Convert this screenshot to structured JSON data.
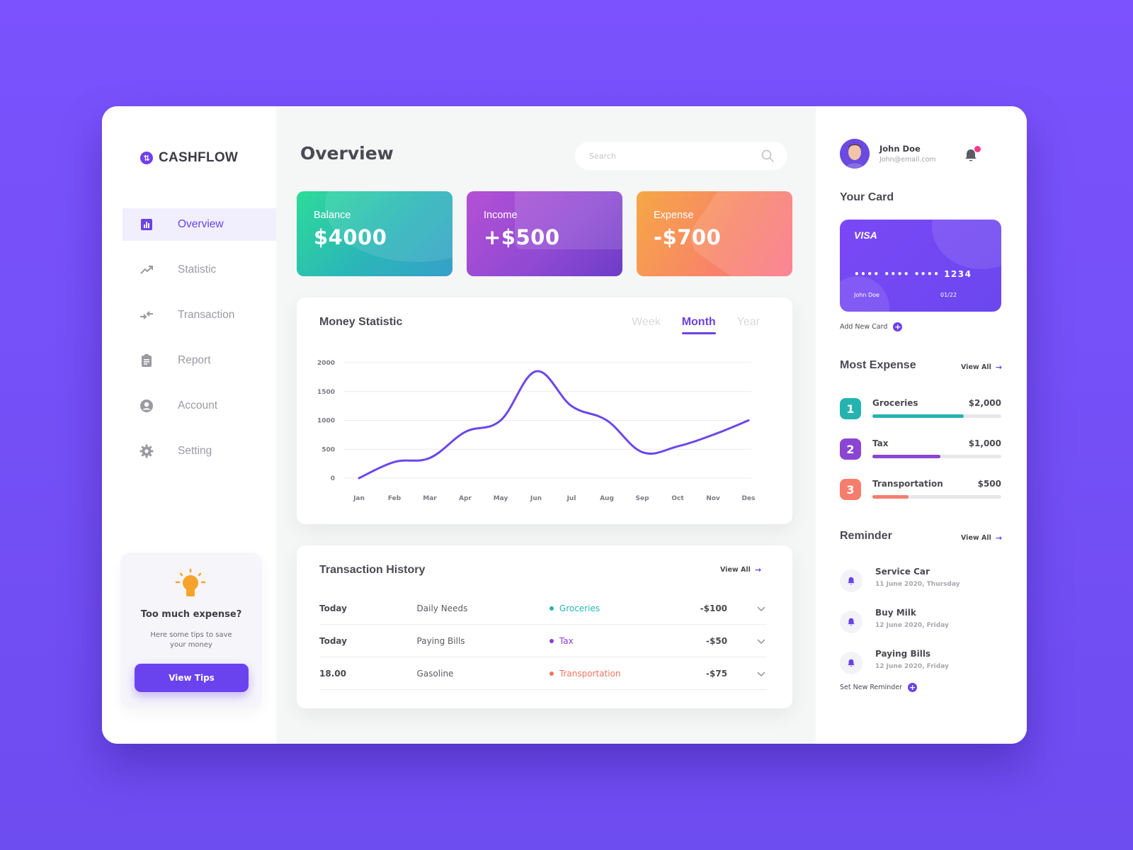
{
  "app": {
    "name": "CASHFLOW"
  },
  "sidebar": {
    "items": [
      {
        "label": "Overview",
        "icon": "bar-chart-icon",
        "active": true
      },
      {
        "label": "Statistic",
        "icon": "trending-up-icon",
        "active": false
      },
      {
        "label": "Transaction",
        "icon": "swap-arrows-icon",
        "active": false
      },
      {
        "label": "Report",
        "icon": "clipboard-icon",
        "active": false
      },
      {
        "label": "Account",
        "icon": "user-circle-icon",
        "active": false
      },
      {
        "label": "Setting",
        "icon": "gear-icon",
        "active": false
      }
    ],
    "tips": {
      "title": "Too much expense?",
      "subtitle": "Here some tips to save your money",
      "button": "View Tips"
    }
  },
  "header": {
    "title": "Overview",
    "search_placeholder": "Search"
  },
  "stats": {
    "balance": {
      "label": "Balance",
      "value": "$4000"
    },
    "income": {
      "label": "Income",
      "value": "+$500"
    },
    "expense": {
      "label": "Expense",
      "value": "-$700"
    }
  },
  "money_statistic": {
    "title": "Money Statistic",
    "tabs": [
      "Week",
      "Month",
      "Year"
    ],
    "active_tab": "Month"
  },
  "chart_data": {
    "type": "line",
    "categories": [
      "Jan",
      "Feb",
      "Mar",
      "Apr",
      "May",
      "Jun",
      "Jul",
      "Aug",
      "Sep",
      "Oct",
      "Nov",
      "Des"
    ],
    "values": [
      0,
      280,
      350,
      800,
      1000,
      1850,
      1250,
      1000,
      450,
      550,
      750,
      1000
    ],
    "yticks": [
      0,
      500,
      1000,
      1500,
      2000
    ],
    "ylim": [
      0,
      2000
    ],
    "grid": true,
    "color": "#6d47e9"
  },
  "transactions": {
    "title": "Transaction History",
    "view_all": "View All",
    "rows": [
      {
        "date": "Today",
        "desc": "Daily Needs",
        "category": "Groceries",
        "color": "#23b5b0",
        "amount": "-$100"
      },
      {
        "date": "Today",
        "desc": "Paying Bills",
        "category": "Tax",
        "color": "#8b3fd1",
        "amount": "-$50"
      },
      {
        "date": "18.00",
        "desc": "Gasoline",
        "category": "Transportation",
        "color": "#f2735e",
        "amount": "-$75"
      }
    ]
  },
  "profile": {
    "name": "John Doe",
    "email": "John@email.com"
  },
  "your_card": {
    "title": "Your Card",
    "brand": "VISA",
    "number": "•••• •••• •••• 1234",
    "holder": "John Doe",
    "expiry": "01/22",
    "add_label": "Add New Card"
  },
  "most_expense": {
    "title": "Most Expense",
    "view_all": "View All",
    "items": [
      {
        "rank": "1",
        "name": "Groceries",
        "amount": "$2,000",
        "fill": 0.71,
        "color": "#25b3b0"
      },
      {
        "rank": "2",
        "name": "Tax",
        "amount": "$1,000",
        "fill": 0.53,
        "color": "#8b45d3"
      },
      {
        "rank": "3",
        "name": "Transportation",
        "amount": "$500",
        "fill": 0.28,
        "color": "#f57d6d"
      }
    ]
  },
  "reminder": {
    "title": "Reminder",
    "view_all": "View All",
    "items": [
      {
        "title": "Service Car",
        "date": "11 June 2020, Thursday"
      },
      {
        "title": "Buy Milk",
        "date": "12 June 2020, Friday"
      },
      {
        "title": "Paying Bills",
        "date": "12 June 2020, Friday"
      }
    ],
    "add_label": "Set New Reminder"
  }
}
